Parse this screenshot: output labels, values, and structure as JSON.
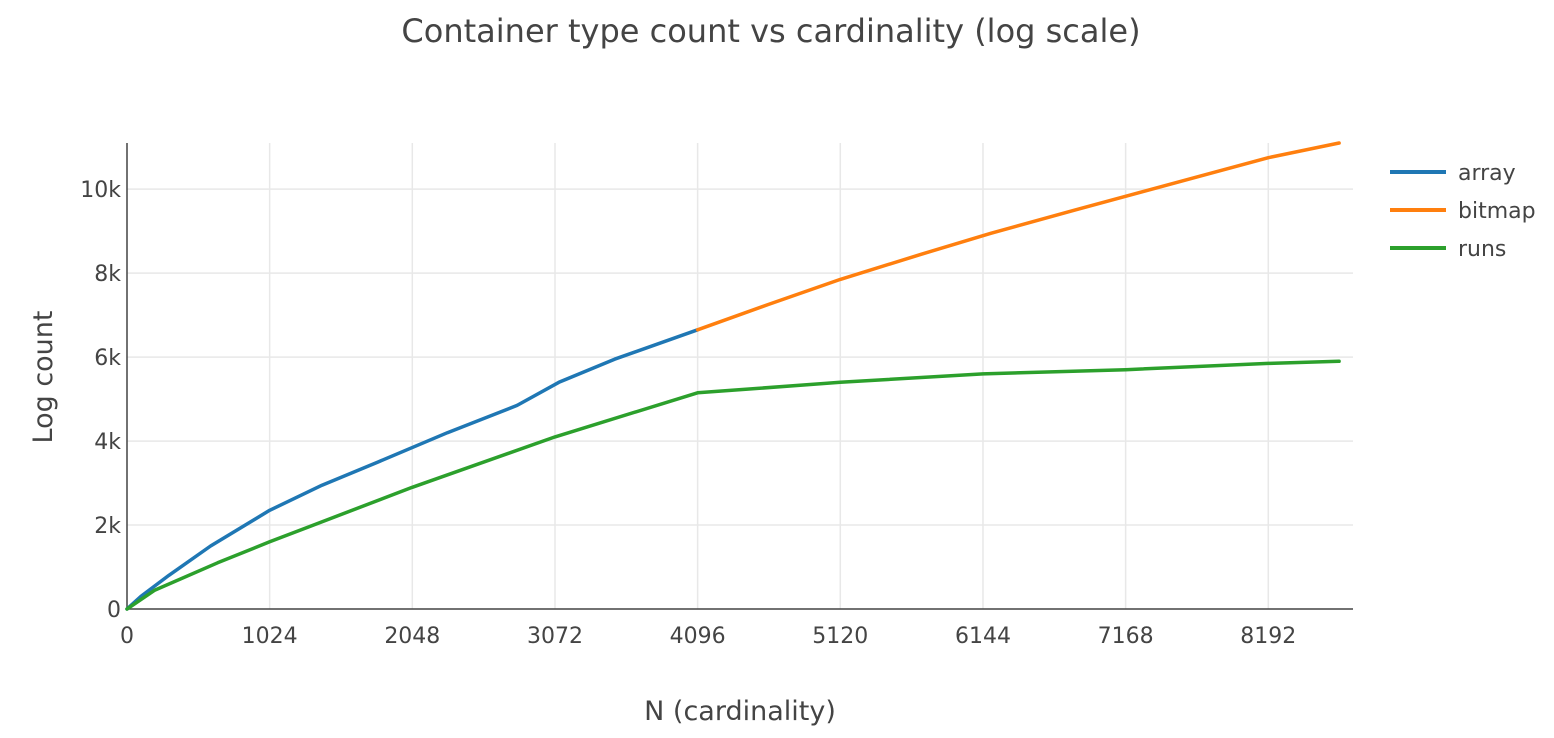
{
  "chart_data": {
    "type": "line",
    "title": "Container type count vs cardinality (log scale)",
    "xlabel": "N (cardinality)",
    "ylabel": "Log count",
    "xlim": [
      0,
      8800
    ],
    "ylim": [
      0,
      11100
    ],
    "x_ticks": [
      0,
      1024,
      2048,
      3072,
      4096,
      5120,
      6144,
      7168,
      8192
    ],
    "x_tick_labels": [
      "0",
      "1024",
      "2048",
      "3072",
      "4096",
      "5120",
      "6144",
      "7168",
      "8192"
    ],
    "y_ticks": [
      0,
      2000,
      4000,
      6000,
      8000,
      10000
    ],
    "y_tick_labels": [
      "0",
      "2k",
      "4k",
      "6k",
      "8k",
      "10k"
    ],
    "grid": true,
    "legend_position": "top-right",
    "series": [
      {
        "name": "array",
        "color": "#1f77b4",
        "x": [
          0,
          100,
          300,
          600,
          1024,
          1400,
          1800,
          2300,
          2800,
          3100,
          3500,
          4096
        ],
        "y": [
          0,
          300,
          800,
          1500,
          2350,
          2950,
          3500,
          4200,
          4850,
          5400,
          5950,
          6650
        ]
      },
      {
        "name": "bitmap",
        "color": "#ff7f0e",
        "x": [
          4096,
          4600,
          5120,
          5700,
          6200,
          6800,
          7300,
          7800,
          8192,
          8700
        ],
        "y": [
          6650,
          7250,
          7850,
          8450,
          8950,
          9500,
          9950,
          10400,
          10750,
          11100
        ]
      },
      {
        "name": "runs",
        "color": "#2ca02c",
        "x": [
          0,
          200,
          650,
          1024,
          1300,
          2048,
          3072,
          4096,
          5120,
          6144,
          7168,
          8192,
          8700
        ],
        "y": [
          0,
          450,
          1100,
          1600,
          1950,
          2900,
          4100,
          5150,
          5400,
          5600,
          5700,
          5850,
          5900
        ]
      }
    ]
  }
}
